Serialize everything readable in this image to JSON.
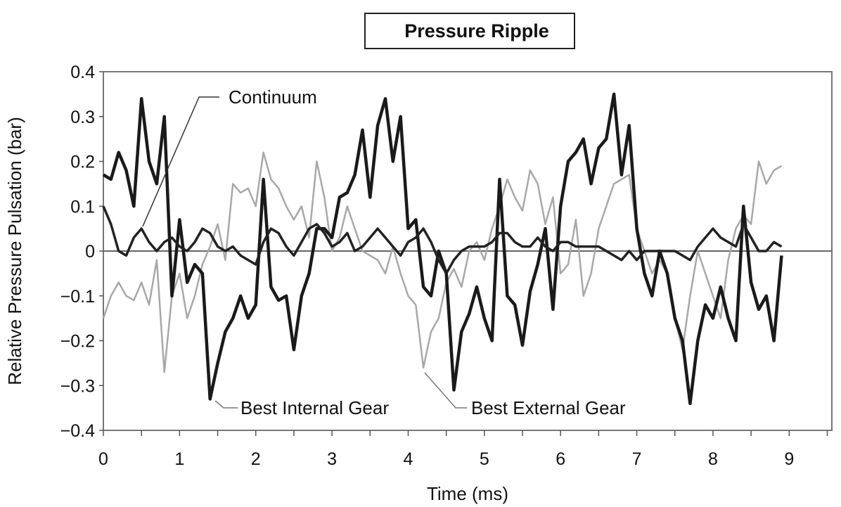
{
  "chart_data": {
    "type": "line",
    "title": "Pressure Ripple",
    "xlabel": "Time (ms)",
    "ylabel": "Relative Pressure Pulsation (bar)",
    "xlim": [
      0,
      9.56
    ],
    "ylim": [
      -0.4,
      0.4
    ],
    "x_ticks": [
      "0",
      "1",
      "2",
      "3",
      "4",
      "5",
      "6",
      "7",
      "8",
      "9"
    ],
    "y_ticks": [
      "0.4",
      "0.3",
      "0.2",
      "0.1",
      "0",
      "−0.1",
      "−0.2",
      "−0.3",
      "−0.4"
    ],
    "grid": false,
    "legend": "inline annotations",
    "x": [
      0,
      0.1,
      0.2,
      0.3,
      0.4,
      0.5,
      0.6,
      0.7,
      0.8,
      0.9,
      1.0,
      1.1,
      1.2,
      1.3,
      1.4,
      1.5,
      1.6,
      1.7,
      1.8,
      1.9,
      2.0,
      2.1,
      2.2,
      2.3,
      2.4,
      2.5,
      2.6,
      2.7,
      2.8,
      2.9,
      3.0,
      3.1,
      3.2,
      3.3,
      3.4,
      3.5,
      3.6,
      3.7,
      3.8,
      3.9,
      4.0,
      4.1,
      4.2,
      4.3,
      4.4,
      4.5,
      4.6,
      4.7,
      4.8,
      4.9,
      5.0,
      5.1,
      5.2,
      5.3,
      5.4,
      5.5,
      5.6,
      5.7,
      5.8,
      5.9,
      6.0,
      6.1,
      6.2,
      6.3,
      6.4,
      6.5,
      6.6,
      6.7,
      6.8,
      6.9,
      7.0,
      7.1,
      7.2,
      7.3,
      7.4,
      7.5,
      7.6,
      7.7,
      7.8,
      7.9,
      8.0,
      8.1,
      8.2,
      8.3,
      8.4,
      8.5,
      8.6,
      8.7,
      8.8,
      8.9
    ],
    "series": [
      {
        "name": "Best External Gear",
        "color": "#a8a8a8",
        "values": [
          -0.15,
          -0.1,
          -0.07,
          -0.1,
          -0.11,
          -0.07,
          -0.12,
          -0.02,
          -0.27,
          -0.1,
          -0.05,
          -0.15,
          -0.1,
          -0.03,
          0.01,
          0.06,
          -0.02,
          0.15,
          0.13,
          0.14,
          0.1,
          0.22,
          0.16,
          0.14,
          0.1,
          0.07,
          0.1,
          0.03,
          0.2,
          0.12,
          0.0,
          0.03,
          0.1,
          0.05,
          0.0,
          -0.01,
          -0.02,
          -0.05,
          0.01,
          -0.05,
          -0.1,
          -0.12,
          -0.26,
          -0.18,
          -0.15,
          -0.07,
          -0.04,
          -0.08,
          0.0,
          0.02,
          -0.02,
          0.05,
          0.1,
          0.16,
          0.12,
          0.09,
          0.18,
          0.15,
          0.06,
          0.12,
          -0.05,
          -0.03,
          0.07,
          -0.1,
          -0.05,
          0.05,
          0.1,
          0.15,
          0.16,
          0.17,
          0.05,
          0.0,
          -0.05,
          -0.02,
          -0.05,
          -0.15,
          -0.22,
          -0.1,
          0.0,
          -0.05,
          -0.1,
          -0.15,
          -0.02,
          0.05,
          0.08,
          0.06,
          0.2,
          0.15,
          0.18,
          0.19
        ]
      },
      {
        "name": "Best Internal Gear",
        "color": "#1a1a1a",
        "values": [
          0.17,
          0.16,
          0.22,
          0.18,
          0.1,
          0.34,
          0.2,
          0.15,
          0.3,
          -0.1,
          0.07,
          -0.07,
          -0.03,
          -0.05,
          -0.33,
          -0.25,
          -0.18,
          -0.15,
          -0.1,
          -0.15,
          -0.12,
          0.16,
          -0.08,
          -0.11,
          -0.1,
          -0.22,
          -0.1,
          -0.05,
          0.05,
          0.05,
          0.03,
          0.12,
          0.13,
          0.17,
          0.27,
          0.12,
          0.28,
          0.34,
          0.2,
          0.3,
          0.05,
          0.07,
          -0.08,
          -0.1,
          0.0,
          -0.05,
          -0.31,
          -0.18,
          -0.14,
          -0.08,
          -0.15,
          -0.2,
          0.16,
          -0.1,
          -0.12,
          -0.21,
          -0.09,
          -0.03,
          0.05,
          -0.13,
          0.1,
          0.2,
          0.22,
          0.25,
          0.15,
          0.23,
          0.25,
          0.35,
          0.17,
          0.28,
          0.05,
          -0.05,
          -0.1,
          0.0,
          -0.05,
          -0.15,
          -0.2,
          -0.34,
          -0.2,
          -0.12,
          -0.15,
          -0.08,
          -0.15,
          -0.2,
          0.1,
          -0.07,
          -0.13,
          -0.1,
          -0.2,
          -0.01
        ]
      },
      {
        "name": "Continuum",
        "color": "#222222",
        "values": [
          0.1,
          0.06,
          0.0,
          -0.01,
          0.03,
          0.05,
          0.02,
          0.0,
          0.02,
          0.03,
          0.01,
          0.0,
          0.02,
          0.05,
          0.04,
          0.01,
          0.0,
          0.01,
          -0.01,
          -0.02,
          -0.03,
          0.02,
          0.05,
          0.04,
          0.01,
          -0.01,
          0.02,
          0.05,
          0.06,
          0.04,
          0.01,
          0.02,
          0.04,
          0.0,
          0.01,
          0.03,
          0.05,
          0.03,
          0.01,
          -0.01,
          0.02,
          0.03,
          0.05,
          0.02,
          -0.02,
          -0.05,
          -0.02,
          0.0,
          0.01,
          0.01,
          0.01,
          0.02,
          0.04,
          0.04,
          0.02,
          0.01,
          0.01,
          0.03,
          0.01,
          0.0,
          0.02,
          0.02,
          0.01,
          0.01,
          0.01,
          0.01,
          0.0,
          -0.01,
          -0.02,
          0.0,
          -0.02,
          0.0,
          0.0,
          0.0,
          0.0,
          0.0,
          -0.01,
          -0.02,
          0.01,
          0.03,
          0.05,
          0.03,
          0.02,
          0.01,
          0.06,
          0.03,
          0.0,
          0.0,
          0.02,
          0.01
        ]
      }
    ]
  }
}
